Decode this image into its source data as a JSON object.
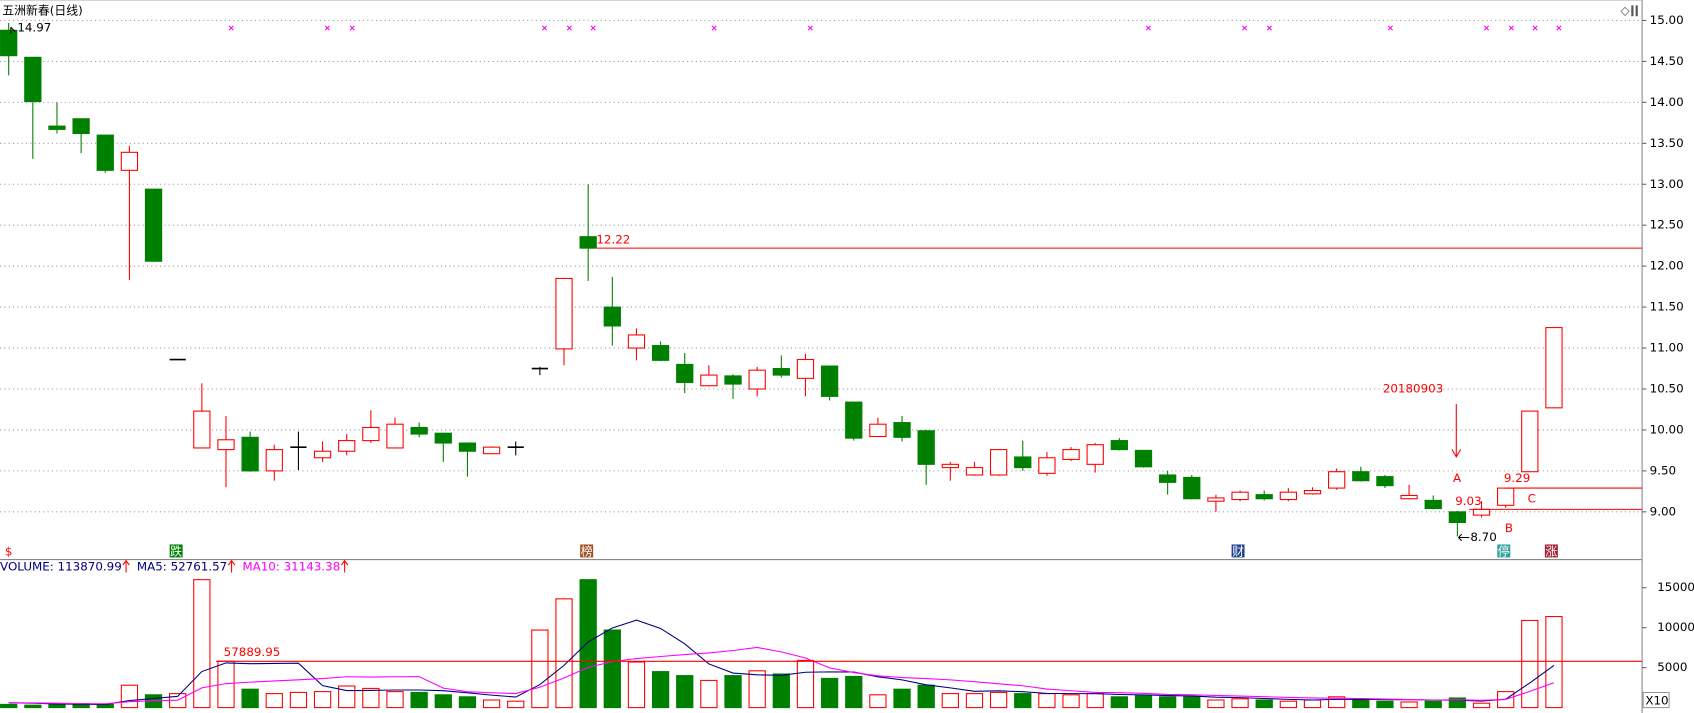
{
  "chart_data": [
    {
      "type": "candlestick",
      "title": "五洲新春(日线)",
      "open": [
        14.88,
        14.55,
        13.71,
        13.8,
        13.6,
        13.17,
        12.94,
        10.86,
        9.78,
        9.76,
        9.91,
        9.5,
        9.79,
        9.66,
        9.74,
        9.87,
        9.78,
        10.03,
        9.96,
        9.84,
        9.71,
        9.79,
        10.75,
        10.99,
        12.36,
        11.5,
        11.0,
        11.03,
        10.8,
        10.54,
        10.66,
        10.5,
        10.75,
        10.63,
        10.78,
        10.34,
        9.92,
        10.09,
        9.99,
        9.54,
        9.45,
        9.45,
        9.67,
        9.47,
        9.64,
        9.58,
        9.87,
        9.75,
        9.45,
        9.42,
        9.13,
        9.15,
        9.21,
        9.15,
        9.22,
        9.29,
        9.49,
        9.43,
        9.16,
        9.14,
        9.0,
        8.96,
        9.08,
        9.49,
        10.27
      ],
      "high": [
        14.97,
        14.55,
        14.0,
        13.8,
        13.6,
        13.47,
        12.94,
        10.86,
        10.57,
        10.17,
        9.98,
        9.82,
        9.98,
        9.86,
        9.95,
        10.24,
        10.15,
        10.09,
        9.96,
        9.84,
        9.8,
        9.86,
        10.77,
        11.85,
        13.0,
        11.87,
        11.24,
        11.08,
        10.94,
        10.79,
        10.68,
        10.77,
        10.91,
        10.93,
        10.78,
        10.34,
        10.15,
        10.17,
        10.0,
        9.61,
        9.61,
        9.76,
        9.87,
        9.73,
        9.79,
        9.84,
        9.9,
        9.75,
        9.5,
        9.45,
        9.21,
        9.26,
        9.26,
        9.29,
        9.3,
        9.53,
        9.55,
        9.45,
        9.33,
        9.2,
        9.01,
        9.13,
        9.29,
        10.23,
        11.25
      ],
      "low": [
        14.33,
        13.31,
        13.62,
        13.38,
        13.14,
        11.83,
        12.06,
        10.86,
        9.78,
        9.3,
        9.49,
        9.38,
        9.51,
        9.61,
        9.69,
        9.84,
        9.78,
        9.91,
        9.61,
        9.43,
        9.7,
        9.69,
        10.67,
        10.79,
        11.82,
        11.03,
        10.85,
        10.84,
        10.45,
        10.53,
        10.38,
        10.41,
        10.64,
        10.41,
        10.36,
        9.87,
        9.92,
        9.86,
        9.33,
        9.38,
        9.44,
        9.44,
        9.5,
        9.44,
        9.62,
        9.48,
        9.75,
        9.54,
        9.21,
        9.15,
        9.0,
        9.13,
        9.14,
        9.13,
        9.21,
        9.27,
        9.37,
        9.29,
        9.15,
        9.03,
        8.7,
        8.93,
        9.05,
        9.49,
        10.27
      ],
      "close": [
        14.57,
        14.01,
        13.67,
        13.62,
        13.17,
        13.39,
        12.06,
        10.86,
        10.23,
        9.88,
        9.5,
        9.76,
        9.79,
        9.74,
        9.87,
        10.03,
        10.07,
        9.95,
        9.84,
        9.74,
        9.79,
        9.79,
        10.75,
        11.85,
        12.22,
        11.27,
        11.16,
        10.85,
        10.58,
        10.67,
        10.56,
        10.73,
        10.67,
        10.86,
        10.41,
        9.9,
        10.07,
        9.91,
        9.58,
        9.58,
        9.54,
        9.76,
        9.54,
        9.66,
        9.76,
        9.82,
        9.76,
        9.55,
        9.36,
        9.16,
        9.17,
        9.24,
        9.16,
        9.24,
        9.26,
        9.49,
        9.38,
        9.32,
        9.2,
        9.04,
        8.87,
        9.03,
        9.29,
        10.23,
        11.25
      ],
      "up_color": "#ff0000",
      "down_color": "#008000",
      "flat_color": "#000000",
      "ylim": [
        8.43,
        15.25
      ],
      "yticks": [
        {
          "value": 9,
          "label": "9.00"
        },
        {
          "value": 9.5,
          "label": "9.50"
        },
        {
          "value": 10,
          "label": "10.00"
        },
        {
          "value": 10.5,
          "label": "10.50"
        },
        {
          "value": 11,
          "label": "11.00"
        },
        {
          "value": 11.5,
          "label": "11.50"
        },
        {
          "value": 12,
          "label": "12.00"
        },
        {
          "value": 12.5,
          "label": "12.50"
        },
        {
          "value": 13,
          "label": "13.00"
        },
        {
          "value": 13.5,
          "label": "13.50"
        },
        {
          "value": 14,
          "label": "14.00"
        },
        {
          "value": 14.5,
          "label": "14.50"
        },
        {
          "value": 15,
          "label": "15.00"
        }
      ],
      "grid": true,
      "price_lines": [
        {
          "value": 12.22,
          "label": "12.22"
        },
        {
          "value": 9.03,
          "label": "9.03"
        },
        {
          "value": 9.29,
          "label": "9.29"
        }
      ],
      "extreme_labels": [
        {
          "value": 14.97,
          "label": "14.97"
        },
        {
          "value": 8.7,
          "label": "8.70"
        }
      ],
      "annotations": [
        "20180903",
        "A",
        "B",
        "C"
      ],
      "event_icons": [
        "$",
        "跌",
        "榜",
        "财",
        "停",
        "涨"
      ]
    },
    {
      "type": "bar",
      "series": [
        {
          "name": "VOLUME: 113870.99",
          "color": "#000080",
          "values": [
            400,
            300,
            400,
            500,
            400,
            2800,
            1600,
            1750,
            16000,
            5800,
            2300,
            1750,
            1900,
            2000,
            2700,
            2400,
            2000,
            1900,
            1600,
            1350,
            950,
            800,
            9700,
            13600,
            16000,
            9700,
            5700,
            4500,
            4000,
            3400,
            4000,
            4600,
            4200,
            5900,
            3650,
            3900,
            1600,
            2300,
            2800,
            1750,
            1750,
            1900,
            1750,
            1750,
            1600,
            1750,
            1350,
            1500,
            1350,
            1350,
            950,
            1100,
            950,
            800,
            950,
            1350,
            1100,
            800,
            700,
            800,
            1200,
            550,
            2000,
            10900,
            11387.099
          ]
        },
        {
          "name": "MA5: 52761.57",
          "color": "#000080",
          "type": "line",
          "values": [
            600,
            550,
            450,
            420,
            400,
            880,
            1140,
            1410,
            4510,
            5590,
            5490,
            5520,
            5550,
            2750,
            2130,
            2150,
            2200,
            2200,
            2120,
            1850,
            1560,
            1320,
            2880,
            5280,
            8210,
            9960,
            10940,
            9900,
            7980,
            5460,
            4320,
            4100,
            4040,
            4420,
            4470,
            4450,
            3850,
            3470,
            2850,
            2470,
            2040,
            2100,
            1990,
            1780,
            1750,
            1750,
            1640,
            1590,
            1510,
            1460,
            1300,
            1250,
            1140,
            1030,
            950,
            1030,
            1030,
            1000,
            980,
            950,
            920,
            810,
            1050,
            3090,
            5276.157
          ]
        },
        {
          "name": "MA10: 31143.38",
          "color": "#ff00ff",
          "type": "line",
          "values": [
            600,
            580,
            550,
            500,
            480,
            740,
            845,
            930,
            2465,
            2995,
            3185,
            3330,
            3480,
            3630,
            3860,
            3820,
            3860,
            3875,
            2435,
            1990,
            1855,
            1760,
            2540,
            3700,
            5030,
            5760,
            6130,
            6390,
            6630,
            6835,
            7140,
            7520,
            6970,
            6200,
            4965,
            4385,
            3975,
            3755,
            3635,
            3470,
            3245,
            2975,
            2730,
            2315,
            2110,
            1895,
            1870,
            1790,
            1645,
            1605,
            1525,
            1445,
            1365,
            1270,
            1205,
            1165,
            1140,
            1070,
            1005,
            950,
            975,
            920,
            1025,
            2035,
            3114.338
          ]
        }
      ],
      "ylim": [
        -405,
        18240
      ],
      "yticks": [
        5000,
        10000,
        15000
      ],
      "reference_line": {
        "value": 5788.995,
        "label": "57889.95"
      },
      "unit_label": "X10"
    }
  ]
}
